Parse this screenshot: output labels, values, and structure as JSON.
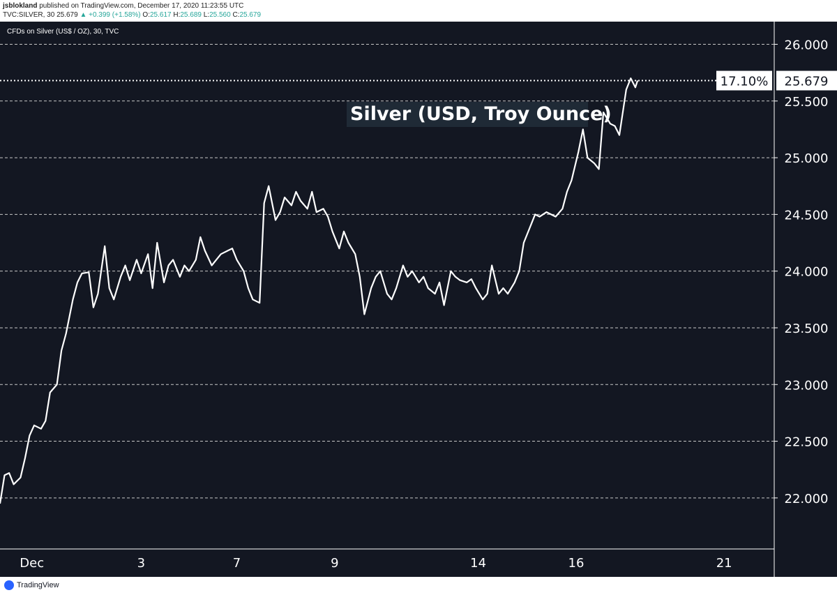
{
  "header": {
    "author": "jsblokland",
    "published_text": "published on TradingView.com, December 17, 2020 11:23:55 UTC",
    "symbol": "TVC:SILVER, 30",
    "last": "25.679",
    "change": "▲ +0.399 (+1.58%)",
    "o_label": "O:",
    "o_value": "25.617",
    "h_label": "H:",
    "h_value": "25.689",
    "l_label": "L:",
    "l_value": "25.560",
    "c_label": "C:",
    "c_value": "25.679"
  },
  "footer": {
    "logo_text": "TradingView",
    "logo_icon": "tradingview-logo-icon"
  },
  "colors": {
    "background": "#131722",
    "line": "#ffffff",
    "grid": "#c8c8c8",
    "axis_text": "#ffffff",
    "label_bg": "#ffffff",
    "label_text": "#131722"
  },
  "chart_data": {
    "type": "line",
    "title": "Silver (USD, Troy Ounce)",
    "subtitle": "CFDs on Silver (US$ / OZ), 30, TVC",
    "xlabel": "",
    "ylabel": "",
    "ylim": [
      21.55,
      26.2
    ],
    "yticks": [
      22.0,
      22.5,
      23.0,
      23.5,
      24.0,
      24.5,
      25.0,
      25.5,
      26.0
    ],
    "ytick_labels": [
      "22.000",
      "22.500",
      "23.000",
      "23.500",
      "24.000",
      "24.500",
      "25.000",
      "25.500",
      "26.000"
    ],
    "xlim": [
      0,
      34
    ],
    "xticks": [
      {
        "x": 1.4,
        "label": "Dec"
      },
      {
        "x": 6.2,
        "label": "3"
      },
      {
        "x": 10.4,
        "label": "7"
      },
      {
        "x": 14.7,
        "label": "9"
      },
      {
        "x": 21.0,
        "label": "14"
      },
      {
        "x": 25.3,
        "label": "16"
      },
      {
        "x": 31.8,
        "label": "21"
      }
    ],
    "grid": "horizontal dashed",
    "last_value_label": "25.679",
    "percent_label": "17.10%",
    "series": [
      {
        "values": [
          [
            0.0,
            21.95
          ],
          [
            0.2,
            22.2
          ],
          [
            0.4,
            22.22
          ],
          [
            0.6,
            22.12
          ],
          [
            0.9,
            22.18
          ],
          [
            1.1,
            22.35
          ],
          [
            1.3,
            22.55
          ],
          [
            1.5,
            22.64
          ],
          [
            1.8,
            22.61
          ],
          [
            2.0,
            22.68
          ],
          [
            2.2,
            22.93
          ],
          [
            2.5,
            23.0
          ],
          [
            2.7,
            23.3
          ],
          [
            2.9,
            23.45
          ],
          [
            3.2,
            23.75
          ],
          [
            3.4,
            23.9
          ],
          [
            3.6,
            23.98
          ],
          [
            3.9,
            23.99
          ],
          [
            4.1,
            23.68
          ],
          [
            4.3,
            23.8
          ],
          [
            4.6,
            24.22
          ],
          [
            4.8,
            23.85
          ],
          [
            5.0,
            23.75
          ],
          [
            5.3,
            23.95
          ],
          [
            5.5,
            24.05
          ],
          [
            5.7,
            23.92
          ],
          [
            6.0,
            24.1
          ],
          [
            6.2,
            23.98
          ],
          [
            6.5,
            24.15
          ],
          [
            6.7,
            23.85
          ],
          [
            6.9,
            24.25
          ],
          [
            7.2,
            23.9
          ],
          [
            7.4,
            24.05
          ],
          [
            7.6,
            24.1
          ],
          [
            7.9,
            23.95
          ],
          [
            8.1,
            24.05
          ],
          [
            8.3,
            24.0
          ],
          [
            8.6,
            24.1
          ],
          [
            8.8,
            24.3
          ],
          [
            9.0,
            24.18
          ],
          [
            9.3,
            24.05
          ],
          [
            9.5,
            24.1
          ],
          [
            9.7,
            24.15
          ],
          [
            10.0,
            24.18
          ],
          [
            10.2,
            24.2
          ],
          [
            10.4,
            24.1
          ],
          [
            10.7,
            24.0
          ],
          [
            10.9,
            23.85
          ],
          [
            11.1,
            23.75
          ],
          [
            11.4,
            23.72
          ],
          [
            11.6,
            24.6
          ],
          [
            11.8,
            24.75
          ],
          [
            12.1,
            24.45
          ],
          [
            12.3,
            24.52
          ],
          [
            12.5,
            24.65
          ],
          [
            12.8,
            24.58
          ],
          [
            13.0,
            24.7
          ],
          [
            13.2,
            24.62
          ],
          [
            13.5,
            24.55
          ],
          [
            13.7,
            24.7
          ],
          [
            13.9,
            24.52
          ],
          [
            14.2,
            24.55
          ],
          [
            14.4,
            24.48
          ],
          [
            14.6,
            24.35
          ],
          [
            14.9,
            24.2
          ],
          [
            15.1,
            24.35
          ],
          [
            15.3,
            24.25
          ],
          [
            15.6,
            24.15
          ],
          [
            15.8,
            23.95
          ],
          [
            16.0,
            23.62
          ],
          [
            16.3,
            23.85
          ],
          [
            16.5,
            23.95
          ],
          [
            16.7,
            24.0
          ],
          [
            17.0,
            23.8
          ],
          [
            17.2,
            23.75
          ],
          [
            17.4,
            23.85
          ],
          [
            17.7,
            24.05
          ],
          [
            17.9,
            23.95
          ],
          [
            18.1,
            24.0
          ],
          [
            18.4,
            23.9
          ],
          [
            18.6,
            23.95
          ],
          [
            18.8,
            23.85
          ],
          [
            19.1,
            23.8
          ],
          [
            19.3,
            23.9
          ],
          [
            19.5,
            23.7
          ],
          [
            19.8,
            24.0
          ],
          [
            20.0,
            23.95
          ],
          [
            20.2,
            23.92
          ],
          [
            20.5,
            23.9
          ],
          [
            20.7,
            23.93
          ],
          [
            20.9,
            23.85
          ],
          [
            21.2,
            23.75
          ],
          [
            21.4,
            23.8
          ],
          [
            21.6,
            24.05
          ],
          [
            21.9,
            23.8
          ],
          [
            22.1,
            23.85
          ],
          [
            22.3,
            23.8
          ],
          [
            22.6,
            23.9
          ],
          [
            22.8,
            24.0
          ],
          [
            23.0,
            24.25
          ],
          [
            23.3,
            24.4
          ],
          [
            23.5,
            24.5
          ],
          [
            23.7,
            24.48
          ],
          [
            24.0,
            24.52
          ],
          [
            24.2,
            24.5
          ],
          [
            24.4,
            24.48
          ],
          [
            24.7,
            24.55
          ],
          [
            24.9,
            24.7
          ],
          [
            25.1,
            24.8
          ],
          [
            25.4,
            25.05
          ],
          [
            25.6,
            25.25
          ],
          [
            25.8,
            25.0
          ],
          [
            26.1,
            24.95
          ],
          [
            26.3,
            24.9
          ],
          [
            26.5,
            25.4
          ],
          [
            26.8,
            25.3
          ],
          [
            27.0,
            25.28
          ],
          [
            27.2,
            25.2
          ],
          [
            27.5,
            25.6
          ],
          [
            27.7,
            25.7
          ],
          [
            27.9,
            25.62
          ],
          [
            28.0,
            25.68
          ]
        ]
      }
    ]
  }
}
